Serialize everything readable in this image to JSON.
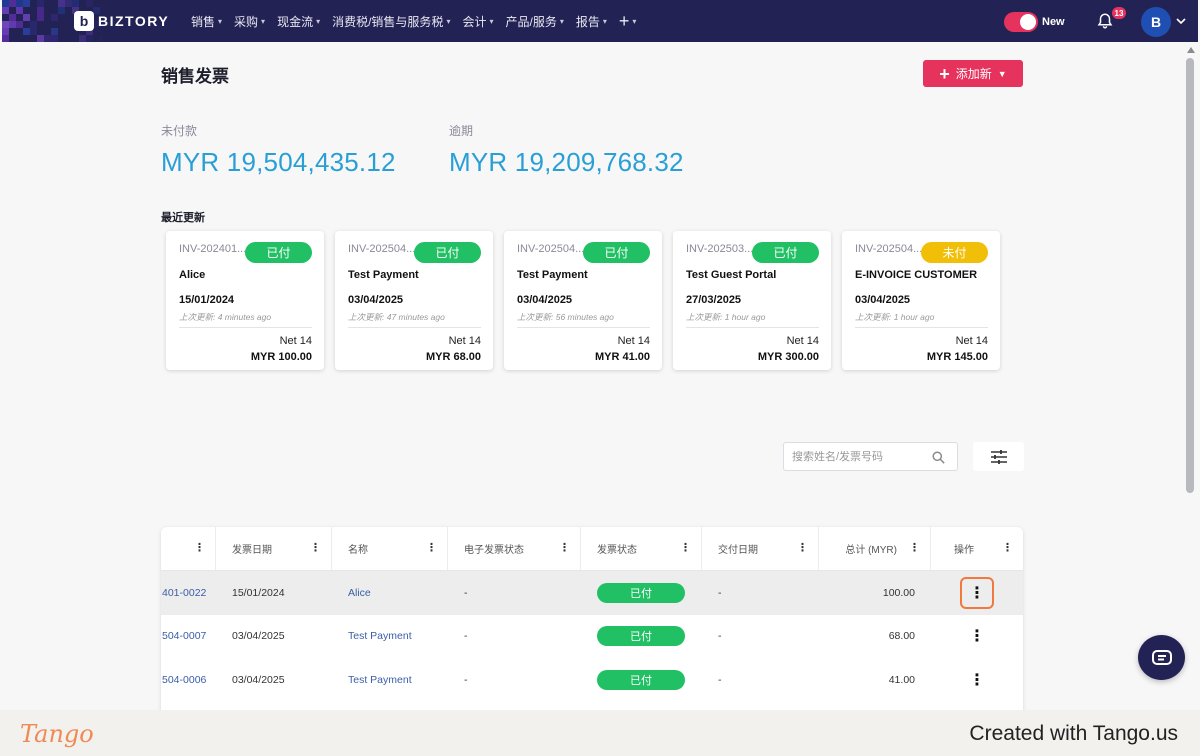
{
  "nav": {
    "brand": "BIZTORY",
    "brand_mark": "b",
    "menu": [
      {
        "label": "销售"
      },
      {
        "label": "采购"
      },
      {
        "label": "现金流"
      },
      {
        "label": "消费税/销售与服务税"
      },
      {
        "label": "会计"
      },
      {
        "label": "产品/服务"
      },
      {
        "label": "报告"
      }
    ],
    "plus_label": "+",
    "toggle_label": "New",
    "notification_count": "13",
    "avatar_initial": "B",
    "icons": [
      "plus-icon",
      "bell-icon",
      "chevron-down-icon"
    ]
  },
  "page": {
    "title": "销售发票",
    "add_button": "添加新",
    "stats": [
      {
        "label": "未付款",
        "value": "MYR 19,504,435.12"
      },
      {
        "label": "逾期",
        "value": "MYR 19,209,768.32"
      }
    ],
    "recent_title": "最近更新"
  },
  "recent_cards": [
    {
      "invoice": "INV-202401...",
      "status": "已付",
      "status_type": "paid",
      "name": "Alice",
      "date": "15/01/2024",
      "updated": "上次更新: 4 minutes ago",
      "terms": "Net 14",
      "amount": "MYR 100.00"
    },
    {
      "invoice": "INV-202504...",
      "status": "已付",
      "status_type": "paid",
      "name": "Test Payment",
      "date": "03/04/2025",
      "updated": "上次更新: 47 minutes ago",
      "terms": "Net 14",
      "amount": "MYR 68.00"
    },
    {
      "invoice": "INV-202504...",
      "status": "已付",
      "status_type": "paid",
      "name": "Test Payment",
      "date": "03/04/2025",
      "updated": "上次更新: 56 minutes ago",
      "terms": "Net 14",
      "amount": "MYR 41.00"
    },
    {
      "invoice": "INV-202503...",
      "status": "已付",
      "status_type": "paid",
      "name": "Test Guest Portal",
      "date": "27/03/2025",
      "updated": "上次更新: 1 hour ago",
      "terms": "Net 14",
      "amount": "MYR 300.00"
    },
    {
      "invoice": "INV-202504...",
      "status": "未付",
      "status_type": "unpaid",
      "name": "E-INVOICE CUSTOMER",
      "date": "03/04/2025",
      "updated": "上次更新: 1 hour ago",
      "terms": "Net 14",
      "amount": "MYR 145.00"
    }
  ],
  "search": {
    "placeholder": "搜索姓名/发票号码"
  },
  "table": {
    "columns": [
      "",
      "发票日期",
      "名称",
      "电子发票状态",
      "发票状态",
      "交付日期",
      "总计 (MYR)",
      "操作"
    ],
    "rows": [
      {
        "invoice": "401-0022",
        "date": "15/01/2024",
        "name": "Alice",
        "einvoice": "-",
        "status": "已付",
        "delivery": "-",
        "total": "100.00"
      },
      {
        "invoice": "504-0007",
        "date": "03/04/2025",
        "name": "Test Payment",
        "einvoice": "-",
        "status": "已付",
        "delivery": "-",
        "total": "68.00"
      },
      {
        "invoice": "504-0006",
        "date": "03/04/2025",
        "name": "Test Payment",
        "einvoice": "-",
        "status": "已付",
        "delivery": "-",
        "total": "41.00"
      }
    ]
  },
  "footer": {
    "logo": "Tango",
    "created": "Created with Tango.us"
  },
  "colors": {
    "nav_bg": "#232254",
    "accent": "#e6335e",
    "paid": "#22c065",
    "unpaid": "#f2bf08",
    "stat_value": "#2a9fd6"
  }
}
